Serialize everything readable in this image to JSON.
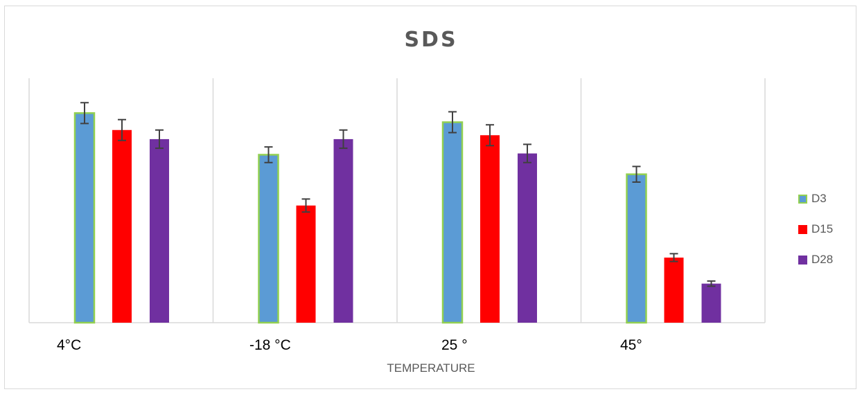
{
  "chart_data": {
    "type": "bar",
    "title": "SDS",
    "xlabel": "TEMPERATURE",
    "ylabel": "",
    "categories": [
      "4°C",
      "-18 °C",
      "25 °",
      "45°"
    ],
    "ylim": [
      0,
      100
    ],
    "grid": false,
    "legend_position": "right",
    "series": [
      {
        "name": "D3",
        "color": "#5b9bd5",
        "border": "#92d050",
        "values": [
          80.5,
          64.5,
          77,
          57
        ],
        "errors": [
          4,
          3,
          4,
          3
        ]
      },
      {
        "name": "D15",
        "color": "#ff0000",
        "border": "",
        "values": [
          74,
          45,
          72,
          25
        ],
        "errors": [
          4,
          2.5,
          4,
          1.5
        ]
      },
      {
        "name": "D28",
        "color": "#7030a0",
        "border": "",
        "values": [
          70.5,
          70.5,
          65,
          15
        ],
        "errors": [
          3.5,
          3.5,
          3.5,
          1
        ]
      }
    ]
  }
}
